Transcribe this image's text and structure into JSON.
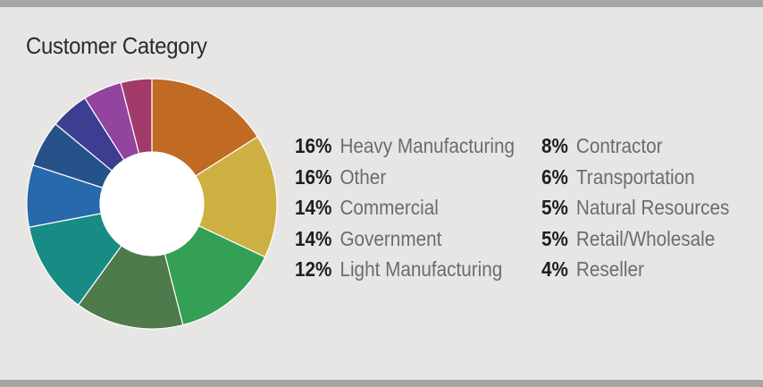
{
  "title": "Customer Category",
  "chart_data": {
    "type": "pie",
    "donut": true,
    "title": "Customer Category",
    "series": [
      {
        "label": "Heavy Manufacturing",
        "value": 16,
        "pct_label": "16%",
        "color": "#c06a24"
      },
      {
        "label": "Other",
        "value": 16,
        "pct_label": "16%",
        "color": "#cdb042"
      },
      {
        "label": "Commercial",
        "value": 14,
        "pct_label": "14%",
        "color": "#33a055"
      },
      {
        "label": "Government",
        "value": 14,
        "pct_label": "14%",
        "color": "#4f7a4c"
      },
      {
        "label": "Light Manufacturing",
        "value": 12,
        "pct_label": "12%",
        "color": "#188b84"
      },
      {
        "label": "Contractor",
        "value": 8,
        "pct_label": "8%",
        "color": "#2869ab"
      },
      {
        "label": "Transportation",
        "value": 6,
        "pct_label": "6%",
        "color": "#26528a"
      },
      {
        "label": "Natural Resources",
        "value": 5,
        "pct_label": "5%",
        "color": "#3d3d92"
      },
      {
        "label": "Retail/Wholesale",
        "value": 5,
        "pct_label": "5%",
        "color": "#93449e"
      },
      {
        "label": "Reseller",
        "value": 4,
        "pct_label": "4%",
        "color": "#a23a69"
      }
    ],
    "legend_placement": "right"
  }
}
